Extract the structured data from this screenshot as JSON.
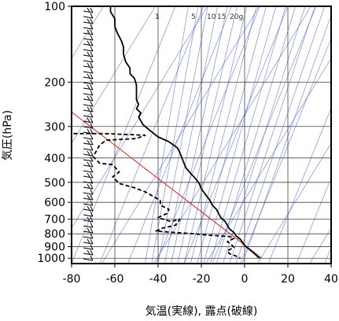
{
  "chart_data": {
    "type": "line",
    "title": "",
    "xlabel": "気温(実線), 露点(破線)",
    "ylabel": "気圧(hPa)",
    "xlim": [
      -80,
      40
    ],
    "ylim": [
      1050,
      100
    ],
    "y_scale": "log",
    "x_ticks": [
      "-80",
      "-60",
      "-40",
      "-20",
      "0",
      "20",
      "40"
    ],
    "y_ticks": [
      "100",
      "200",
      "300",
      "400",
      "500",
      "600",
      "700",
      "800",
      "900",
      "1000"
    ],
    "mixing_ratio_labels": [
      "1",
      "5",
      "10",
      "15",
      "20g"
    ],
    "grid": true,
    "colors": {
      "isotherm": "#3a4fd8",
      "dry_adiabat": "#3a4fd8",
      "reference_line": "#e02020",
      "profile": "#000000"
    },
    "series": [
      {
        "style": "solid",
        "points": [
          [
            -62,
            100
          ],
          [
            -62,
            105
          ],
          [
            -60,
            112
          ],
          [
            -60,
            120
          ],
          [
            -59,
            127
          ],
          [
            -57,
            137
          ],
          [
            -56,
            145
          ],
          [
            -56,
            155
          ],
          [
            -55,
            166
          ],
          [
            -53,
            176
          ],
          [
            -53,
            185
          ],
          [
            -51,
            193
          ],
          [
            -50,
            205
          ],
          [
            -50,
            215
          ],
          [
            -50,
            225
          ],
          [
            -50,
            235
          ],
          [
            -49,
            245
          ],
          [
            -50,
            255
          ],
          [
            -48,
            265
          ],
          [
            -49,
            275
          ],
          [
            -48,
            285
          ],
          [
            -47,
            295
          ],
          [
            -45,
            305
          ],
          [
            -43,
            315
          ],
          [
            -40,
            330
          ],
          [
            -35,
            345
          ],
          [
            -31,
            365
          ],
          [
            -30,
            380
          ],
          [
            -29,
            400
          ],
          [
            -28,
            420
          ],
          [
            -27,
            440
          ],
          [
            -25,
            460
          ],
          [
            -23,
            480
          ],
          [
            -21,
            505
          ],
          [
            -20,
            530
          ],
          [
            -18,
            560
          ],
          [
            -16,
            590
          ],
          [
            -15,
            615
          ],
          [
            -13,
            640
          ],
          [
            -12,
            665
          ],
          [
            -11,
            690
          ],
          [
            -9,
            715
          ],
          [
            -8,
            740
          ],
          [
            -7,
            765
          ],
          [
            -5,
            790
          ],
          [
            -4,
            815
          ],
          [
            -2,
            840
          ],
          [
            -1,
            865
          ],
          [
            0,
            890
          ],
          [
            2,
            920
          ],
          [
            4,
            950
          ],
          [
            6,
            985
          ],
          [
            7,
            1000
          ]
        ]
      },
      {
        "style": "dashed",
        "points": [
          [
            -82,
            320
          ],
          [
            -65,
            320
          ],
          [
            -46,
            325
          ],
          [
            -50,
            335
          ],
          [
            -64,
            340
          ],
          [
            -67,
            355
          ],
          [
            -70,
            395
          ],
          [
            -67,
            420
          ],
          [
            -61,
            425
          ],
          [
            -58,
            455
          ],
          [
            -61,
            475
          ],
          [
            -58,
            505
          ],
          [
            -51,
            525
          ],
          [
            -46,
            545
          ],
          [
            -42,
            570
          ],
          [
            -39,
            590
          ],
          [
            -39,
            615
          ],
          [
            -35,
            640
          ],
          [
            -36,
            665
          ],
          [
            -40,
            690
          ],
          [
            -34,
            715
          ],
          [
            -30,
            700
          ],
          [
            -32,
            740
          ],
          [
            -38,
            760
          ],
          [
            -41,
            780
          ],
          [
            -33,
            790
          ],
          [
            -23,
            800
          ],
          [
            -17,
            810
          ],
          [
            -7,
            820
          ],
          [
            -5,
            835
          ],
          [
            -8,
            860
          ],
          [
            -6,
            885
          ],
          [
            -5,
            905
          ],
          [
            -8,
            935
          ],
          [
            -7,
            960
          ],
          [
            -4,
            980
          ],
          [
            -2,
            1000
          ]
        ]
      }
    ],
    "reference_line": [
      [
        -82,
        255
      ],
      [
        8,
        1000
      ]
    ]
  }
}
